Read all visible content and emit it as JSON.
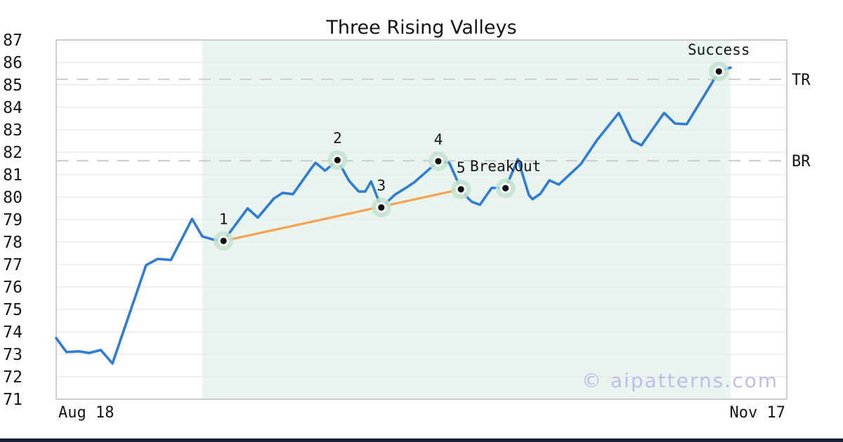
{
  "figure": {
    "title": "Three Rising Valleys",
    "watermark": "© aipatterns.com"
  },
  "colors": {
    "price_line": "#2E7CD3",
    "trendline": "#F5A455",
    "marker_fill": "#C2E3CE",
    "marker_ring": "#FFFFFF",
    "marker_dot": "#101010",
    "pattern_shade": "#EAF4EF",
    "grid": "#E7E7E7",
    "plot_border": "#BFBFBF",
    "level_dash": "#CFCFCF",
    "text": "#141414",
    "watermark_color": "#B7B4E6",
    "bottom_bar": "#161D35"
  },
  "chart_data": {
    "type": "line",
    "title": "Three Rising Valleys",
    "x_units": "fraction_of_plot_width",
    "x_axis": {
      "ticks": [
        {
          "label": "Aug 18",
          "align": "start"
        },
        {
          "label": "Nov 17",
          "align": "end"
        }
      ]
    },
    "y_axis": {
      "min": 71,
      "max": 87,
      "ticks": [
        71,
        72,
        73,
        74,
        75,
        76,
        77,
        78,
        79,
        80,
        81,
        82,
        83,
        84,
        85,
        86,
        87
      ]
    },
    "grid": "horizontal",
    "levels": [
      {
        "label": "TR",
        "value": 85.25
      },
      {
        "label": "BR",
        "value": 81.62
      }
    ],
    "pattern_region": {
      "x_start": 0.2,
      "x_end": 0.923
    },
    "series": [
      {
        "name": "price",
        "points": [
          [
            0.0,
            73.72
          ],
          [
            0.014,
            73.1
          ],
          [
            0.031,
            73.13
          ],
          [
            0.045,
            73.06
          ],
          [
            0.061,
            73.19
          ],
          [
            0.077,
            72.59
          ],
          [
            0.123,
            76.97
          ],
          [
            0.139,
            77.25
          ],
          [
            0.157,
            77.2
          ],
          [
            0.186,
            79.03
          ],
          [
            0.2,
            78.25
          ],
          [
            0.216,
            78.1
          ],
          [
            0.229,
            78.05
          ],
          [
            0.262,
            79.5
          ],
          [
            0.276,
            79.09
          ],
          [
            0.298,
            79.94
          ],
          [
            0.31,
            80.19
          ],
          [
            0.324,
            80.13
          ],
          [
            0.349,
            81.28
          ],
          [
            0.355,
            81.53
          ],
          [
            0.368,
            81.18
          ],
          [
            0.385,
            81.65
          ],
          [
            0.401,
            80.72
          ],
          [
            0.414,
            80.25
          ],
          [
            0.423,
            80.25
          ],
          [
            0.431,
            80.7
          ],
          [
            0.445,
            79.54
          ],
          [
            0.464,
            80.12
          ],
          [
            0.478,
            80.4
          ],
          [
            0.49,
            80.66
          ],
          [
            0.523,
            81.6
          ],
          [
            0.538,
            81.53
          ],
          [
            0.55,
            80.66
          ],
          [
            0.554,
            80.35
          ],
          [
            0.564,
            79.94
          ],
          [
            0.569,
            79.79
          ],
          [
            0.58,
            79.66
          ],
          [
            0.596,
            80.41
          ],
          [
            0.606,
            80.41
          ],
          [
            0.615,
            80.4
          ],
          [
            0.632,
            81.69
          ],
          [
            0.647,
            80.09
          ],
          [
            0.652,
            79.91
          ],
          [
            0.663,
            80.16
          ],
          [
            0.675,
            80.75
          ],
          [
            0.688,
            80.56
          ],
          [
            0.718,
            81.47
          ],
          [
            0.74,
            82.53
          ],
          [
            0.77,
            83.75
          ],
          [
            0.788,
            82.53
          ],
          [
            0.801,
            82.31
          ],
          [
            0.832,
            83.75
          ],
          [
            0.847,
            83.28
          ],
          [
            0.863,
            83.25
          ],
          [
            0.885,
            84.42
          ],
          [
            0.907,
            85.6
          ],
          [
            0.923,
            85.77
          ]
        ]
      }
    ],
    "trendline": {
      "from": [
        0.229,
        78.05
      ],
      "to": [
        0.554,
        80.35
      ]
    },
    "markers": [
      {
        "label": "1",
        "x": 0.229,
        "y": 78.05
      },
      {
        "label": "2",
        "x": 0.385,
        "y": 81.65
      },
      {
        "label": "3",
        "x": 0.445,
        "y": 79.54
      },
      {
        "label": "4",
        "x": 0.523,
        "y": 81.6
      },
      {
        "label": "5",
        "x": 0.554,
        "y": 80.35
      },
      {
        "label": "BreakOut",
        "x": 0.615,
        "y": 80.4
      },
      {
        "label": "Success",
        "x": 0.907,
        "y": 85.6
      }
    ]
  }
}
